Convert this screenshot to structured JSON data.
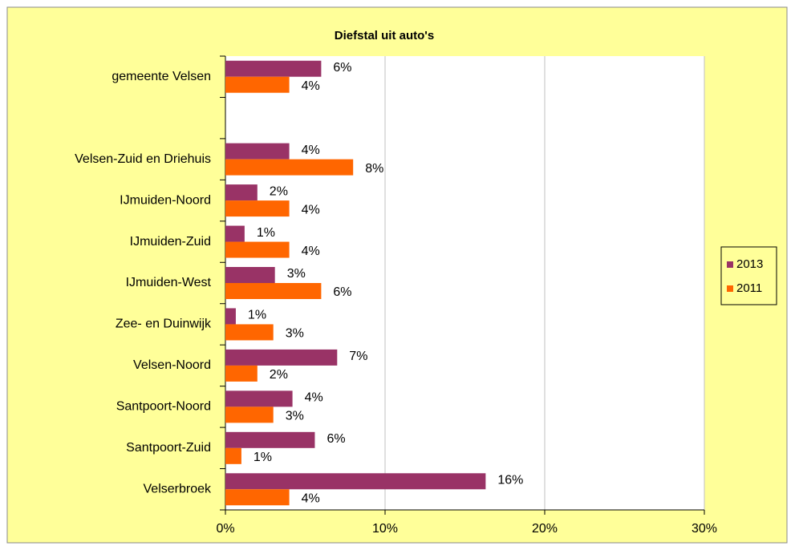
{
  "chart_data": {
    "type": "bar",
    "orientation": "horizontal",
    "title": "Diefstal uit auto's",
    "categories": [
      "gemeente Velsen",
      null,
      "Velsen-Zuid en Driehuis",
      "IJmuiden-Noord",
      "IJmuiden-Zuid",
      "IJmuiden-West",
      "Zee- en Duinwijk",
      "Velsen-Noord",
      "Santpoort-Noord",
      "Santpoort-Zuid",
      "Velserbroek"
    ],
    "series": [
      {
        "name": "2013",
        "color": "#993366",
        "values": [
          6.0,
          null,
          4.0,
          2.0,
          1.2,
          3.1,
          0.65,
          7.0,
          4.2,
          5.6,
          16.3
        ],
        "value_labels": [
          "6%",
          null,
          "4%",
          "2%",
          "1%",
          "3%",
          "1%",
          "7%",
          "4%",
          "6%",
          "16%"
        ]
      },
      {
        "name": "2011",
        "color": "#ff6600",
        "values": [
          4.0,
          null,
          8.0,
          4.0,
          4.0,
          6.0,
          3.0,
          2.0,
          3.0,
          1.0,
          4.0
        ],
        "value_labels": [
          "4%",
          null,
          "8%",
          "4%",
          "4%",
          "6%",
          "3%",
          "2%",
          "3%",
          "1%",
          "4%"
        ]
      }
    ],
    "xlim": [
      0,
      30
    ],
    "xticks": [
      {
        "value": 0,
        "label": "0%"
      },
      {
        "value": 10,
        "label": "10%"
      },
      {
        "value": 20,
        "label": "20%"
      },
      {
        "value": 30,
        "label": "30%"
      }
    ],
    "grid": true,
    "legend": "right"
  }
}
